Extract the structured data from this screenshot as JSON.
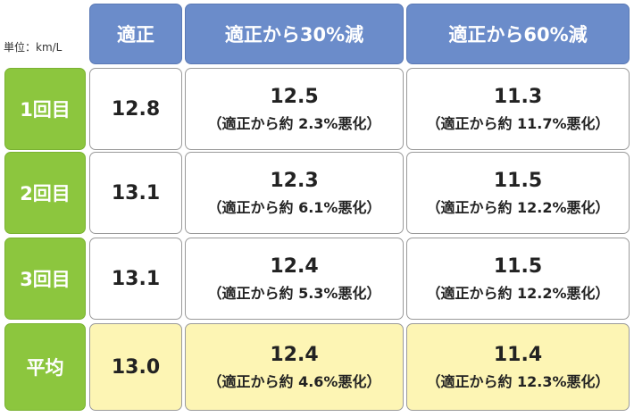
{
  "unit": "単位：km/L",
  "header": [
    "適正",
    "適正から30%減",
    "適正から60%減"
  ],
  "rows": [
    {
      "label": "1回目",
      "cells": [
        {
          "value": "12.8"
        },
        {
          "value": "12.5",
          "note": "（適正から約 2.3%悪化）"
        },
        {
          "value": "11.3",
          "note": "（適正から約 11.7%悪化）"
        }
      ]
    },
    {
      "label": "2回目",
      "cells": [
        {
          "value": "13.1"
        },
        {
          "value": "12.3",
          "note": "（適正から約 6.1%悪化）"
        },
        {
          "value": "11.5",
          "note": "（適正から約 12.2%悪化）"
        }
      ]
    },
    {
      "label": "3回目",
      "cells": [
        {
          "value": "13.1"
        },
        {
          "value": "12.4",
          "note": "（適正から約 5.3%悪化）"
        },
        {
          "value": "11.5",
          "note": "（適正から約 12.2%悪化）"
        }
      ]
    },
    {
      "label": "平均",
      "cells": [
        {
          "value": "13.0"
        },
        {
          "value": "12.4",
          "note": "（適正から約 4.6%悪化）"
        },
        {
          "value": "11.4",
          "note": "（適正から約 12.3%悪化）"
        }
      ]
    }
  ]
}
